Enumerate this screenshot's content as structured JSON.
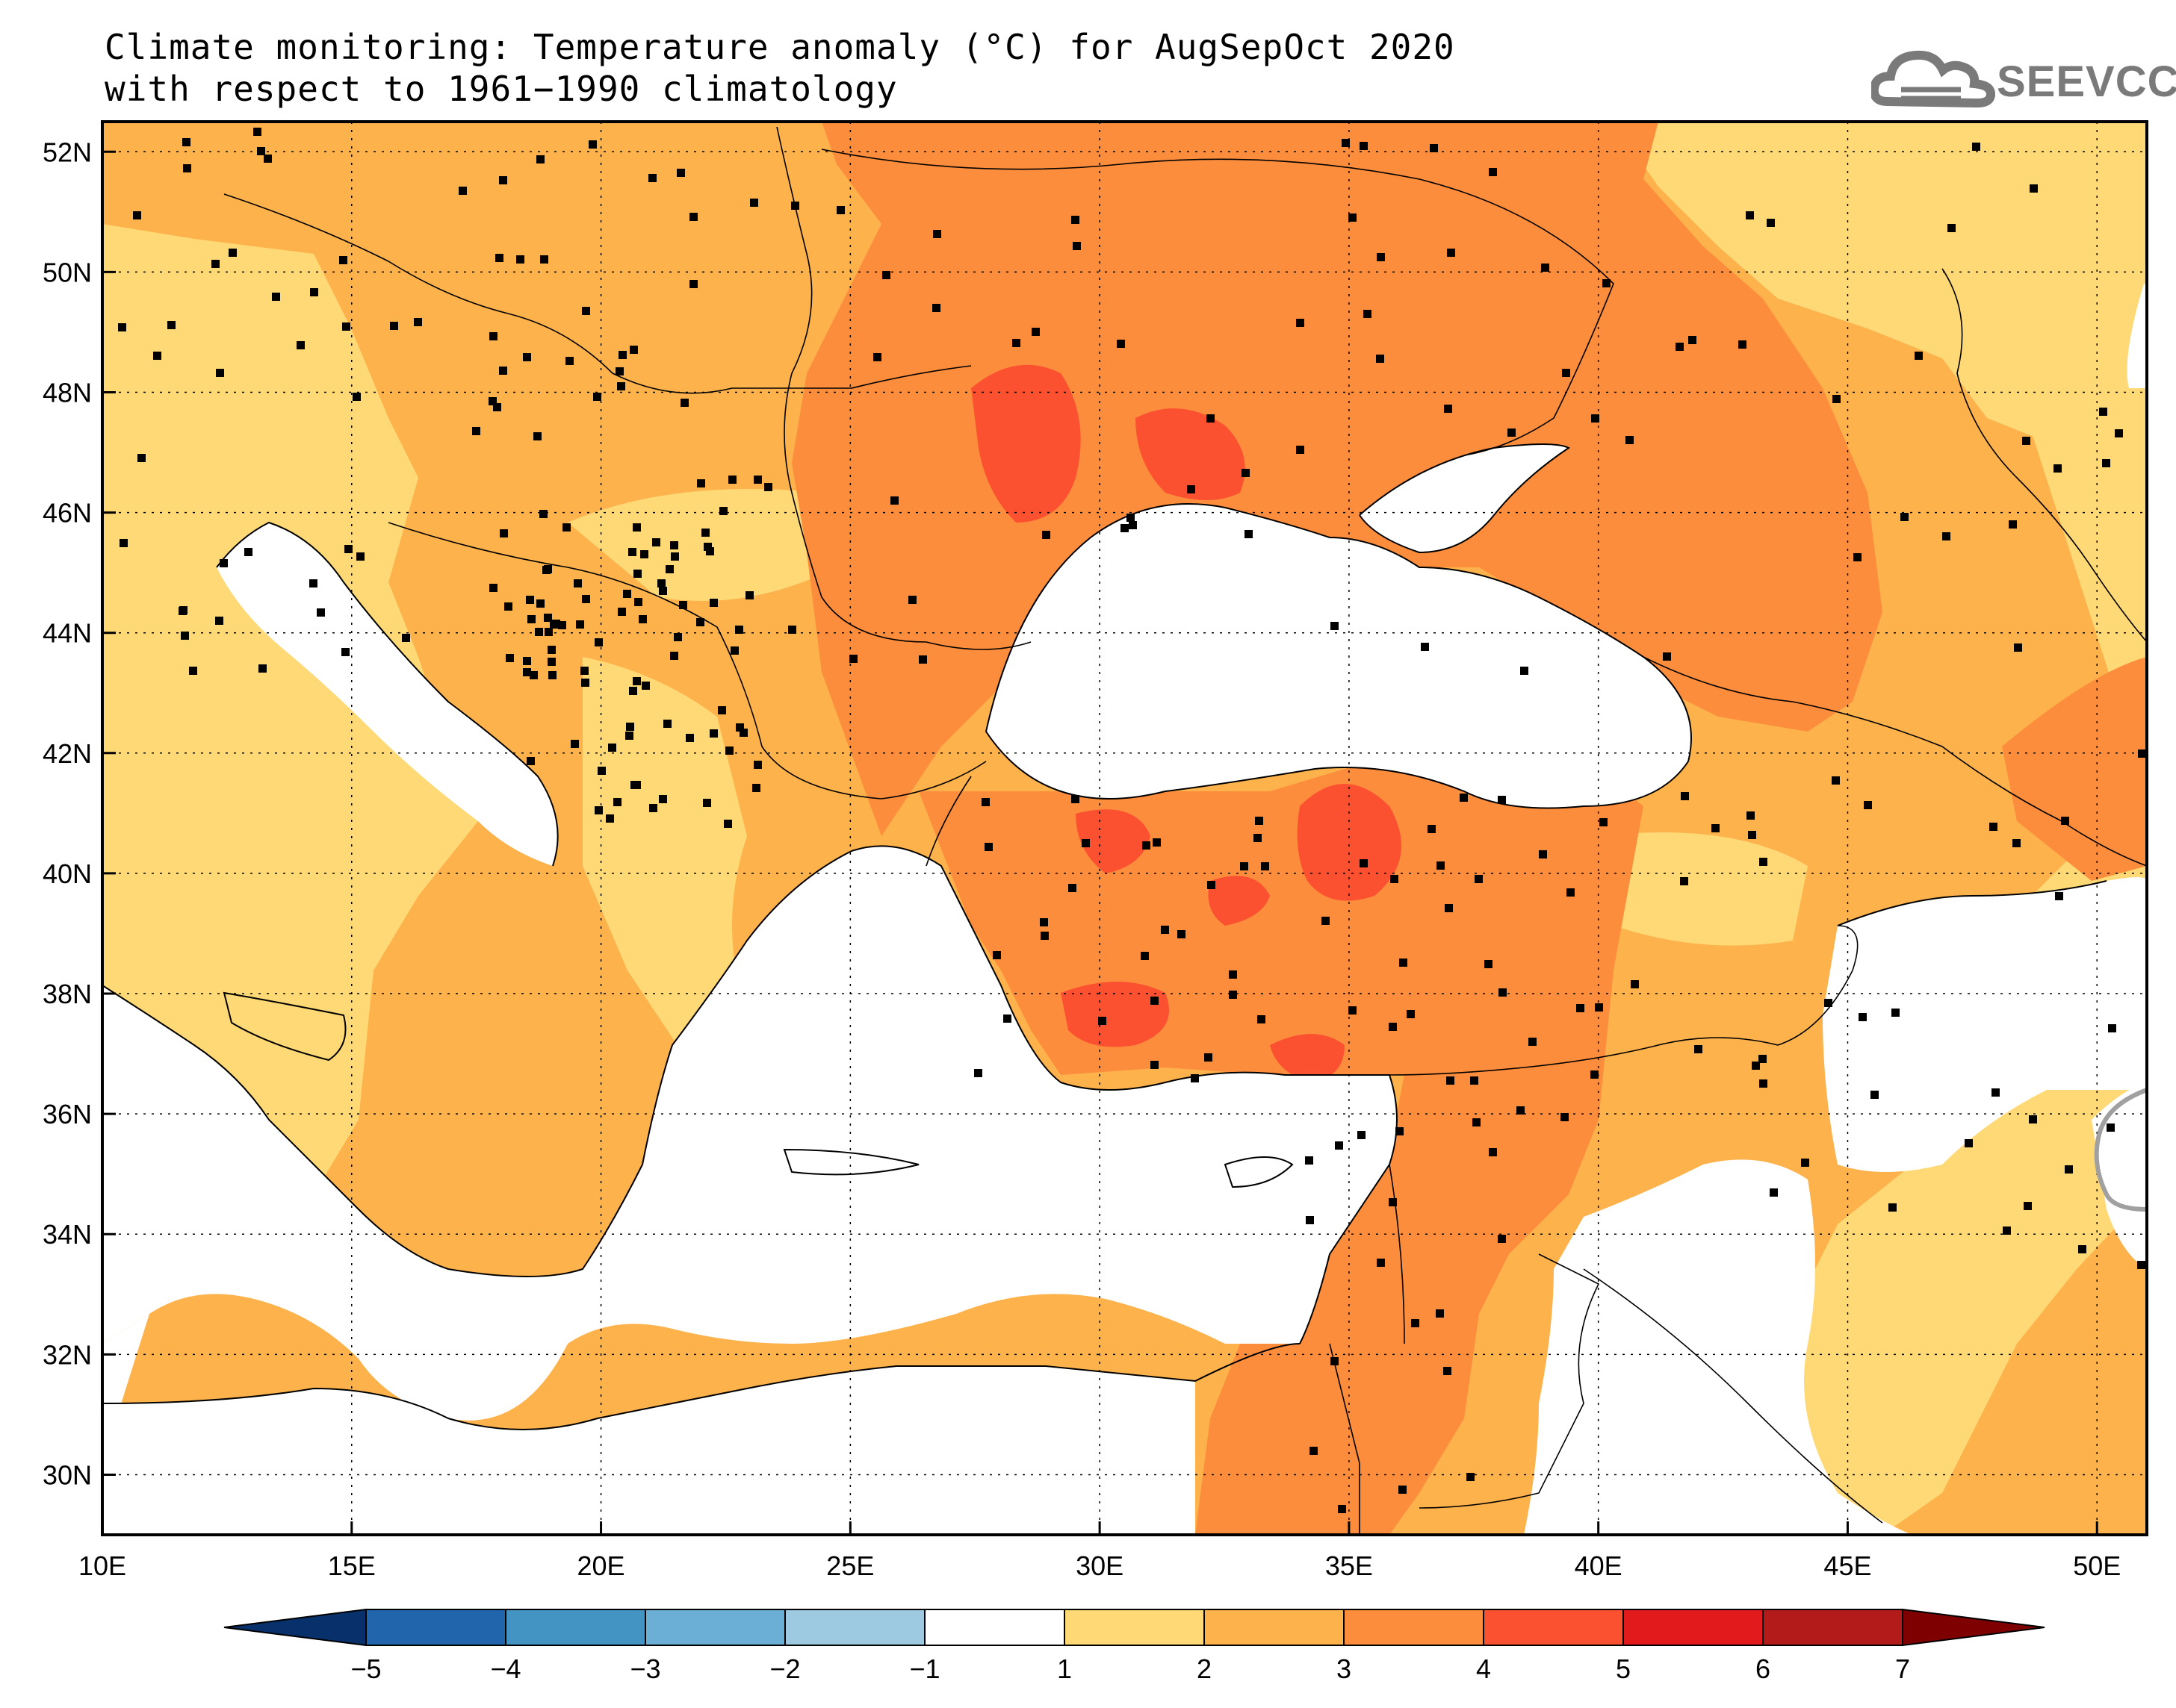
{
  "title": {
    "line1": "Climate monitoring: Temperature anomaly (°C) for AugSepOct 2020",
    "line2": "with respect to 1961−1990 climatology"
  },
  "logo": {
    "text": "SEEVCCC",
    "icon": "cloud-icon"
  },
  "map": {
    "lon_range": [
      10,
      51
    ],
    "lat_range": [
      29,
      52.5
    ],
    "lon_ticks": [
      "10E",
      "15E",
      "20E",
      "25E",
      "30E",
      "35E",
      "40E",
      "45E",
      "50E"
    ],
    "lat_ticks": [
      "52N",
      "50N",
      "48N",
      "46N",
      "44N",
      "42N",
      "40N",
      "38N",
      "36N",
      "34N",
      "32N",
      "30N"
    ],
    "grid": "dotted"
  },
  "colorbar": {
    "labels": [
      "−5",
      "−4",
      "−3",
      "−2",
      "−1",
      "1",
      "2",
      "3",
      "4",
      "5",
      "6",
      "7"
    ],
    "colors": {
      "below": "#08306b",
      "bins": [
        "#2166ac",
        "#4393c3",
        "#6baed6",
        "#9ecae1",
        "#ffffff",
        "#fed976",
        "#fdb24c",
        "#fc8d3c",
        "#fb5130",
        "#e31a1c",
        "#b31b1b"
      ],
      "above": "#7f0000"
    }
  },
  "palette": {
    "sea": "#ffffff",
    "a12": "#fed976",
    "a23": "#fdb24c",
    "a34": "#fc8d3c",
    "a45": "#fb5130"
  }
}
